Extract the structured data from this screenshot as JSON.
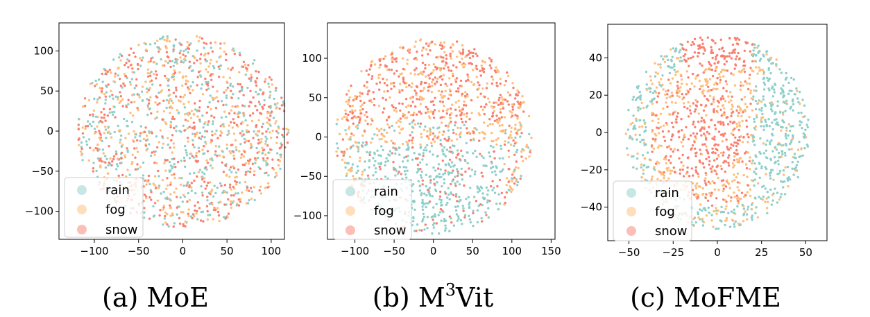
{
  "chart_data": [
    {
      "type": "scatter",
      "caption": "(a) MoE",
      "xlim": [
        -140,
        115
      ],
      "ylim": [
        -135,
        135
      ],
      "xticks": [
        -100,
        -50,
        0,
        50,
        100
      ],
      "yticks": [
        -100,
        -50,
        0,
        50,
        100
      ],
      "grid": false,
      "legend_position": "lower-left",
      "series": [
        {
          "name": "rain",
          "color": "#8ecfc9"
        },
        {
          "name": "fog",
          "color": "#ffbe7a"
        },
        {
          "name": "snow",
          "color": "#fa7f6f"
        }
      ]
    },
    {
      "type": "scatter",
      "caption_prefix": "(b) M",
      "caption_sup": "3",
      "caption_suffix": "Vit",
      "xlim": [
        -135,
        155
      ],
      "ylim": [
        -130,
        145
      ],
      "xticks": [
        -100,
        -50,
        0,
        50,
        100,
        150
      ],
      "yticks": [
        -100,
        -50,
        0,
        50,
        100
      ],
      "ytick_labels": [
        "−100",
        "−50",
        "0",
        "50",
        "100"
      ],
      "grid": false,
      "legend_position": "lower-left",
      "series": [
        {
          "name": "rain",
          "color": "#8ecfc9"
        },
        {
          "name": "fog",
          "color": "#ffbe7a"
        },
        {
          "name": "snow",
          "color": "#fa7f6f"
        }
      ]
    },
    {
      "type": "scatter",
      "caption": "(c) MoFME",
      "xlim": [
        -62,
        62
      ],
      "ylim": [
        -58,
        58
      ],
      "xticks": [
        -50,
        -25,
        0,
        25,
        50
      ],
      "yticks": [
        -40,
        -20,
        0,
        20,
        40
      ],
      "grid": false,
      "legend_position": "lower-left",
      "series": [
        {
          "name": "rain",
          "color": "#8ecfc9"
        },
        {
          "name": "fog",
          "color": "#ffbe7a"
        },
        {
          "name": "snow",
          "color": "#fa7f6f"
        }
      ]
    }
  ]
}
